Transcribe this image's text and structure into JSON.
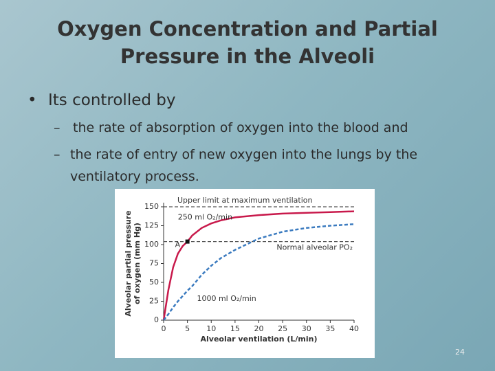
{
  "slide": {
    "title": "Oxygen Concentration and Partial Pressure in the Alveoli",
    "bullets": [
      {
        "text": "Its controlled by",
        "sub": [
          "the rate of absorption of oxygen into the blood and",
          "the rate of entry of new oxygen into the lungs by the ventilatory process."
        ]
      }
    ],
    "page_number": "24"
  },
  "chart_data": {
    "type": "line",
    "x_label": "Alveolar ventilation (L/min)",
    "y_label": [
      "Alveolar partial pressure",
      "of oxygen (mm Hg)"
    ],
    "xlim": [
      0,
      40
    ],
    "xticks": [
      0,
      5,
      10,
      15,
      20,
      25,
      30,
      35,
      40
    ],
    "ylim": [
      0,
      150
    ],
    "yticks": [
      0,
      25,
      50,
      75,
      100,
      125,
      150
    ],
    "series": [
      {
        "name": "250 ml O₂/min",
        "color": "#c8194b",
        "dash": false,
        "x": [
          0,
          1,
          2,
          3,
          4,
          5,
          6,
          8,
          10,
          12,
          15,
          20,
          25,
          30,
          35,
          40
        ],
        "values": [
          0,
          40,
          70,
          88,
          98,
          104,
          112,
          122,
          128,
          132,
          136,
          139,
          141,
          142,
          143,
          144
        ]
      },
      {
        "name": "1000 ml O₂/min",
        "color": "#3a7abf",
        "dash": true,
        "x": [
          0,
          1,
          2,
          3,
          4,
          5,
          6,
          8,
          10,
          12,
          15,
          18,
          20,
          25,
          30,
          35,
          40
        ],
        "values": [
          0,
          8,
          17,
          25,
          32,
          39,
          45,
          60,
          72,
          82,
          93,
          102,
          108,
          117,
          122,
          125,
          127
        ]
      }
    ],
    "reference_lines": [
      {
        "value": 150,
        "label": "Upper limit at maximum ventilation"
      },
      {
        "value": 104,
        "label": "Normal alveolar PO₂"
      }
    ],
    "points": [
      {
        "x": 5,
        "y": 104,
        "label": "A"
      }
    ]
  }
}
